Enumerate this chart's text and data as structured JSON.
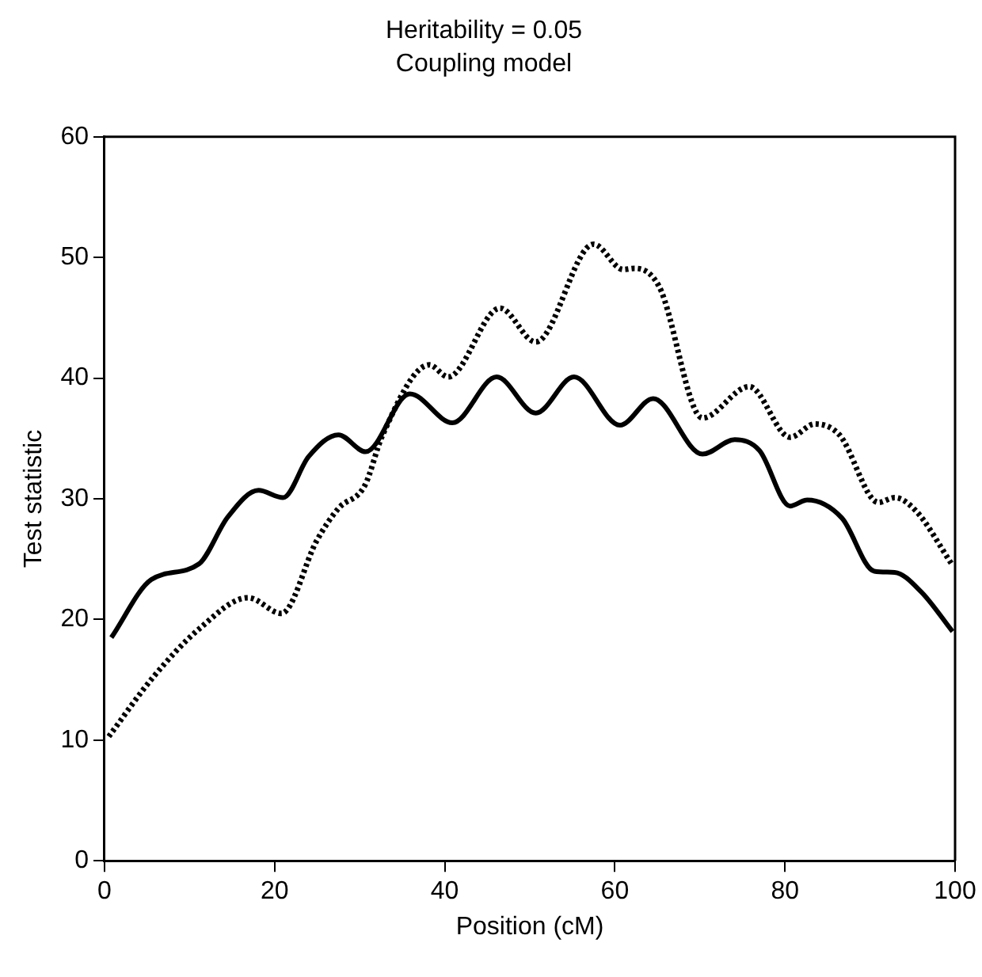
{
  "chart_data": {
    "type": "line",
    "title": "Heritability = 0.05",
    "subtitle": "Coupling model",
    "xlabel": "Position (cM)",
    "ylabel": "Test statistic",
    "xlim": [
      0,
      100
    ],
    "xticks": [
      0,
      20,
      40,
      60,
      80,
      100
    ],
    "ylim": [
      0,
      60
    ],
    "yticks": [
      0,
      10,
      20,
      30,
      40,
      50,
      60
    ],
    "grid": false,
    "legend": false,
    "marker": "none",
    "series": [
      {
        "color": "#000000",
        "line_style": "solid",
        "x": [
          0.8,
          5.5,
          11.1,
          14.5,
          18.1,
          21,
          24,
          27.5,
          30.7,
          35.9,
          40.9,
          46.1,
          50.7,
          55.2,
          60.6,
          64.5,
          70.3,
          74.1,
          77,
          80.6,
          82.6,
          86.7,
          90.5,
          92.9,
          96,
          99.7
        ],
        "values": [
          18.5,
          23.3,
          24.6,
          28.5,
          30.7,
          30.1,
          33.5,
          35.3,
          33.9,
          38.7,
          36.3,
          40.1,
          37.1,
          40.1,
          36.1,
          38.3,
          33.7,
          34.9,
          34,
          29.4,
          29.9,
          28.4,
          24,
          23.9,
          22.3,
          19
        ]
      },
      {
        "color": "#000000",
        "line_style": "dotted",
        "x": [
          0.5,
          5.7,
          11.1,
          16.9,
          20.8,
          25,
          27.5,
          30.6,
          32.7,
          38.2,
          40.4,
          46.5,
          50.7,
          57.5,
          61,
          62.3,
          65.2,
          70.3,
          75.8,
          80.6,
          83.5,
          86.4,
          91,
          92.9,
          95.4,
          99.6
        ],
        "values": [
          10.3,
          15.2,
          19.2,
          21.8,
          20.5,
          26.6,
          29.2,
          31.1,
          35.3,
          41.1,
          40.1,
          45.8,
          43,
          51.1,
          49,
          49.1,
          47.6,
          36.7,
          39.3,
          35.1,
          36.2,
          35.3,
          29.7,
          30.1,
          29,
          24.6
        ]
      }
    ]
  }
}
